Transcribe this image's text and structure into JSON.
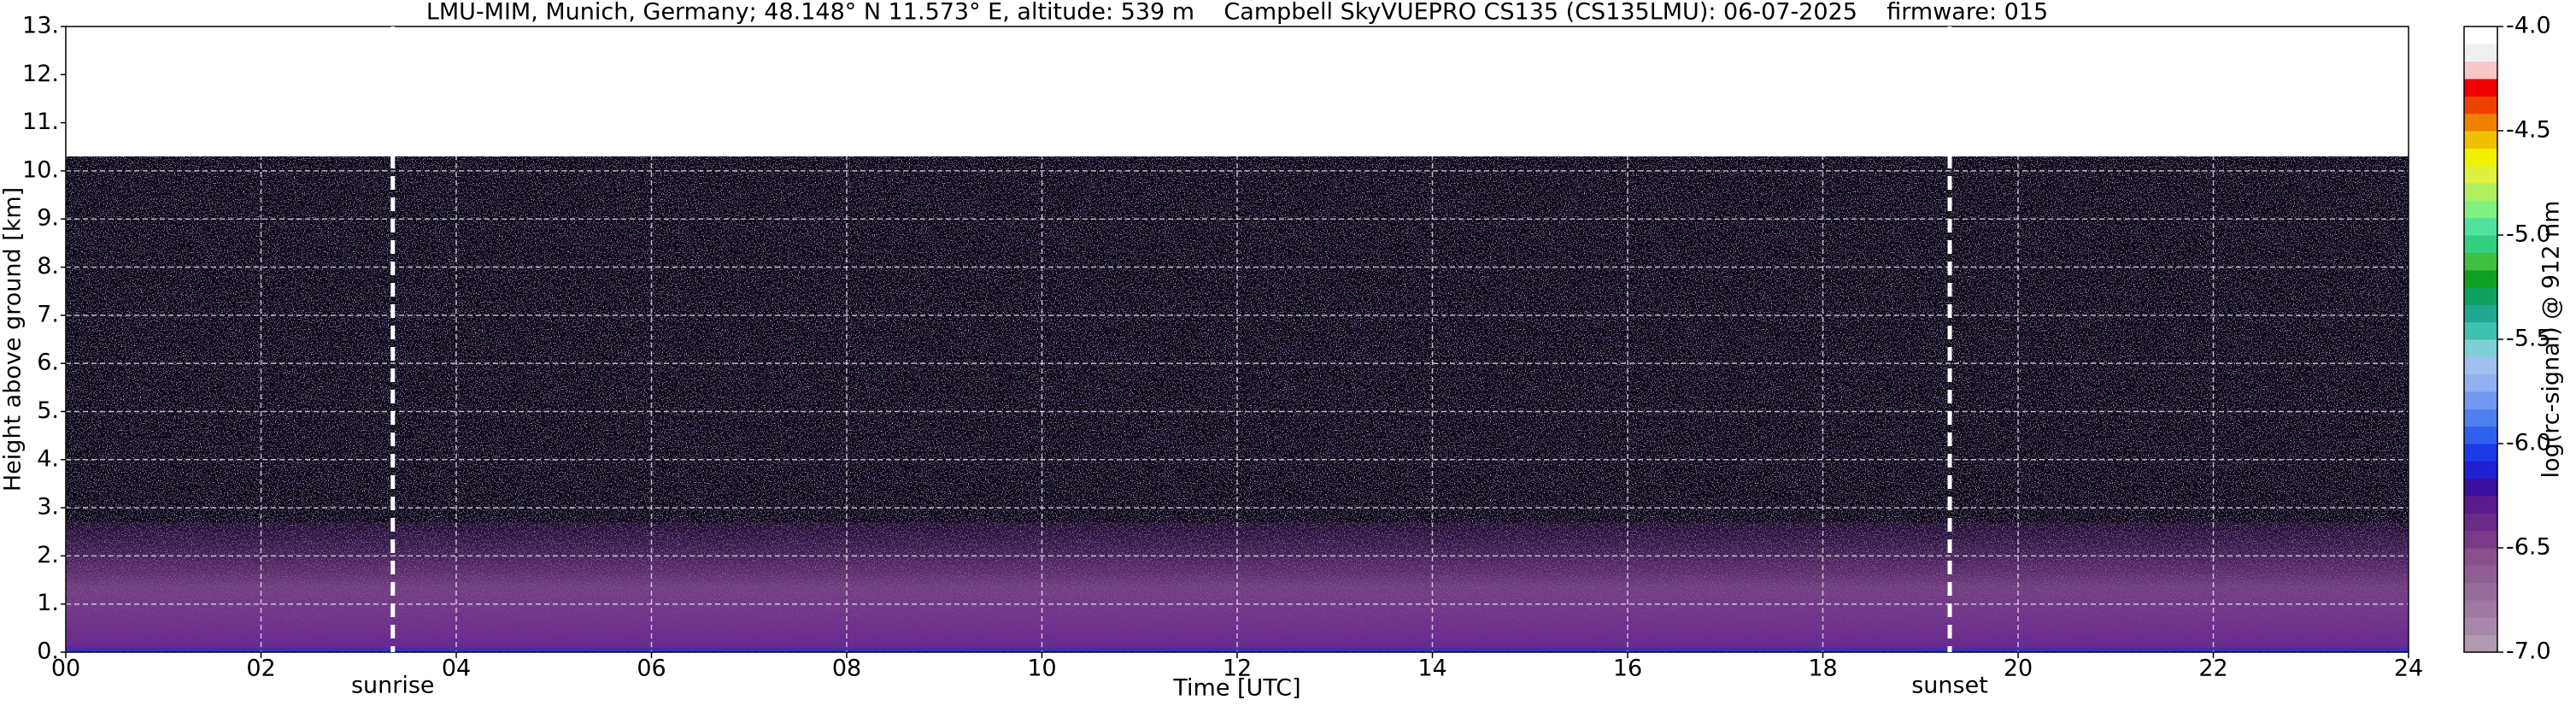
{
  "chart_data": {
    "type": "heatmap",
    "title": "LMU-MIM, Munich, Germany; 48.148° N 11.573° E, altitude: 539 m    Campbell SkyVUEPRO CS135 (CS135LMU): 06-07-2025    firmware: 015",
    "xlabel": "Time [UTC]",
    "ylabel": "Height above ground [km]",
    "xlim": [
      0,
      24
    ],
    "xticks": [
      {
        "value": 0,
        "label": "00"
      },
      {
        "value": 2,
        "label": "02"
      },
      {
        "value": 4,
        "label": "04"
      },
      {
        "value": 6,
        "label": "06"
      },
      {
        "value": 8,
        "label": "08"
      },
      10,
      12,
      14,
      16,
      18,
      20,
      22,
      24
    ],
    "ylim": [
      0,
      13
    ],
    "yticks": [
      {
        "value": 0,
        "label": "0."
      },
      {
        "value": 1,
        "label": "1."
      },
      {
        "value": 2,
        "label": "2."
      },
      {
        "value": 3,
        "label": "3."
      },
      {
        "value": 4,
        "label": "4."
      },
      {
        "value": 5,
        "label": "5."
      },
      {
        "value": 6,
        "label": "6."
      },
      {
        "value": 7,
        "label": "7."
      },
      {
        "value": 8,
        "label": "8."
      },
      {
        "value": 9,
        "label": "9."
      },
      {
        "value": 10,
        "label": "10."
      },
      {
        "value": 11,
        "label": "11."
      },
      {
        "value": 12,
        "label": "12."
      },
      {
        "value": 13,
        "label": "13."
      }
    ],
    "grid": true,
    "annotations": [
      {
        "label": "sunrise",
        "x": 3.35
      },
      {
        "label": "sunset",
        "x": 19.3
      }
    ],
    "colorbar": {
      "label": "log(rc-signal) @ 912 nm",
      "lim": [
        -7,
        -4
      ],
      "ticks": [
        {
          "value": -7,
          "label": "-7.0"
        },
        -6.5,
        {
          "value": -6,
          "label": "-6.0"
        },
        -5.5,
        {
          "value": -5,
          "label": "-5.0"
        },
        -4.5,
        {
          "value": -4,
          "label": "-4.0"
        }
      ],
      "colors": [
        "#b09ab0",
        "#a888a8",
        "#a07aa0",
        "#986c98",
        "#905e94",
        "#88508c",
        "#7a3a88",
        "#6a2a88",
        "#5a1a8c",
        "#3a10a0",
        "#2020d0",
        "#1a3ae8",
        "#3060f0",
        "#5080f0",
        "#7098f0",
        "#90b0f0",
        "#a0c0f0",
        "#80d0d8",
        "#40c0b0",
        "#20a890",
        "#10a060",
        "#10a020",
        "#40c040",
        "#30d080",
        "#50e0a0",
        "#80f080",
        "#b0f060",
        "#e0f040",
        "#f0f000",
        "#f0c000",
        "#f08000",
        "#f04000",
        "#f00000",
        "#f8c8c8",
        "#f0f0f0",
        "#ffffff"
      ]
    }
  }
}
